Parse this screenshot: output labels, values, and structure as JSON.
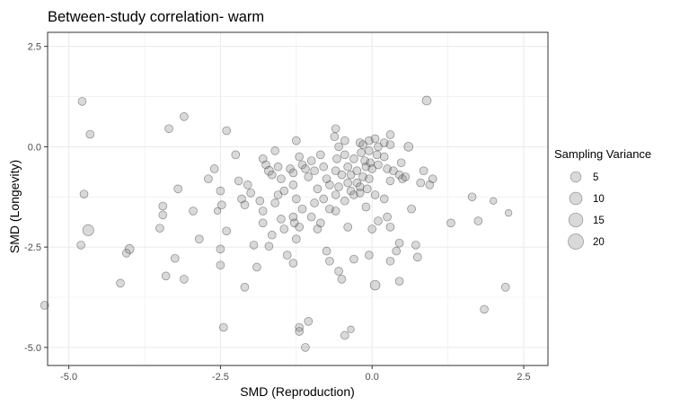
{
  "chart_data": {
    "type": "scatter",
    "title": "Between-study correlation- warm",
    "xlabel": "SMD (Reproduction)",
    "ylabel": "SMD (Longevity)",
    "xlim": [
      -5.35,
      2.9
    ],
    "ylim": [
      -5.45,
      2.85
    ],
    "x_ticks": [
      -5.0,
      -2.5,
      0.0,
      2.5
    ],
    "x_tick_labels": [
      "-5.0",
      "-2.5",
      "0.0",
      "2.5"
    ],
    "y_ticks": [
      -5.0,
      -2.5,
      0.0,
      2.5
    ],
    "y_tick_labels": [
      "-5.0",
      "-2.5",
      "0.0",
      "2.5"
    ],
    "grid": true,
    "legend": {
      "title": "Sampling Variance",
      "position": "right",
      "entries": [
        {
          "label": "5",
          "value": 5
        },
        {
          "label": "10",
          "value": 10
        },
        {
          "label": "15",
          "value": 15
        },
        {
          "label": "20",
          "value": 20
        }
      ]
    },
    "colors": {
      "point_fill": "#808080",
      "point_stroke": "#3a3a3a",
      "grid": "#ebebeb",
      "panel_border": "#333333"
    },
    "points": [
      {
        "x": -4.78,
        "y": 1.13,
        "v": 2
      },
      {
        "x": -4.65,
        "y": 0.31,
        "v": 2
      },
      {
        "x": -4.75,
        "y": -1.18,
        "v": 2
      },
      {
        "x": -4.68,
        "y": -2.08,
        "v": 6
      },
      {
        "x": -4.8,
        "y": -2.45,
        "v": 2
      },
      {
        "x": -4.0,
        "y": -2.55,
        "v": 3
      },
      {
        "x": -4.05,
        "y": -2.65,
        "v": 2
      },
      {
        "x": -4.15,
        "y": -3.4,
        "v": 2
      },
      {
        "x": -5.4,
        "y": -3.95,
        "v": 2
      },
      {
        "x": -3.45,
        "y": -1.48,
        "v": 2
      },
      {
        "x": -3.45,
        "y": -1.7,
        "v": 2
      },
      {
        "x": -3.5,
        "y": -2.03,
        "v": 2
      },
      {
        "x": -3.4,
        "y": -3.22,
        "v": 2
      },
      {
        "x": -3.1,
        "y": 0.75,
        "v": 2
      },
      {
        "x": -3.35,
        "y": 0.45,
        "v": 2
      },
      {
        "x": -3.2,
        "y": -1.05,
        "v": 2
      },
      {
        "x": -2.95,
        "y": -1.6,
        "v": 2
      },
      {
        "x": -3.25,
        "y": -2.78,
        "v": 2
      },
      {
        "x": -3.1,
        "y": -3.3,
        "v": 2
      },
      {
        "x": -2.85,
        "y": -2.3,
        "v": 2
      },
      {
        "x": -2.6,
        "y": -0.55,
        "v": 2
      },
      {
        "x": -2.7,
        "y": -0.8,
        "v": 2
      },
      {
        "x": -2.5,
        "y": -1.1,
        "v": 2
      },
      {
        "x": -2.55,
        "y": -1.6,
        "v": 1
      },
      {
        "x": -2.48,
        "y": -1.45,
        "v": 2
      },
      {
        "x": -2.4,
        "y": -2.1,
        "v": 2
      },
      {
        "x": -2.5,
        "y": -2.55,
        "v": 2
      },
      {
        "x": -2.5,
        "y": -2.95,
        "v": 2
      },
      {
        "x": -2.45,
        "y": -4.5,
        "v": 2
      },
      {
        "x": -2.4,
        "y": 0.4,
        "v": 2
      },
      {
        "x": -2.25,
        "y": -0.2,
        "v": 2
      },
      {
        "x": -2.2,
        "y": -0.85,
        "v": 2
      },
      {
        "x": -2.15,
        "y": -1.3,
        "v": 2
      },
      {
        "x": -2.1,
        "y": -1.45,
        "v": 2
      },
      {
        "x": -2.05,
        "y": -0.95,
        "v": 2
      },
      {
        "x": -2.0,
        "y": -1.15,
        "v": 2
      },
      {
        "x": -1.95,
        "y": -2.45,
        "v": 2
      },
      {
        "x": -2.1,
        "y": -3.5,
        "v": 2
      },
      {
        "x": -1.9,
        "y": -3.0,
        "v": 2
      },
      {
        "x": -1.8,
        "y": -0.3,
        "v": 2
      },
      {
        "x": -1.75,
        "y": -0.45,
        "v": 2
      },
      {
        "x": -1.7,
        "y": -0.6,
        "v": 3
      },
      {
        "x": -1.65,
        "y": -0.7,
        "v": 2
      },
      {
        "x": -1.85,
        "y": -1.35,
        "v": 2
      },
      {
        "x": -1.8,
        "y": -1.6,
        "v": 2
      },
      {
        "x": -1.8,
        "y": -1.9,
        "v": 2
      },
      {
        "x": -1.65,
        "y": -2.2,
        "v": 2
      },
      {
        "x": -1.7,
        "y": -2.48,
        "v": 2
      },
      {
        "x": -1.6,
        "y": -0.1,
        "v": 2
      },
      {
        "x": -1.55,
        "y": -0.5,
        "v": 2
      },
      {
        "x": -1.5,
        "y": -0.8,
        "v": 2
      },
      {
        "x": -1.55,
        "y": -1.2,
        "v": 2
      },
      {
        "x": -1.45,
        "y": -1.1,
        "v": 2
      },
      {
        "x": -1.6,
        "y": -1.4,
        "v": 2
      },
      {
        "x": -1.5,
        "y": -1.8,
        "v": 2
      },
      {
        "x": -1.45,
        "y": -2.05,
        "v": 2
      },
      {
        "x": -1.4,
        "y": -2.7,
        "v": 2
      },
      {
        "x": -1.35,
        "y": -0.55,
        "v": 2
      },
      {
        "x": -1.3,
        "y": -0.65,
        "v": 2
      },
      {
        "x": -1.3,
        "y": -0.95,
        "v": 2
      },
      {
        "x": -1.25,
        "y": -1.3,
        "v": 2
      },
      {
        "x": -1.3,
        "y": -1.75,
        "v": 2
      },
      {
        "x": -1.28,
        "y": -1.9,
        "v": 2
      },
      {
        "x": -1.2,
        "y": -2.0,
        "v": 2
      },
      {
        "x": -1.25,
        "y": -2.3,
        "v": 2
      },
      {
        "x": -1.3,
        "y": -2.9,
        "v": 2
      },
      {
        "x": -1.25,
        "y": 0.15,
        "v": 2
      },
      {
        "x": -1.2,
        "y": -0.25,
        "v": 2
      },
      {
        "x": -1.15,
        "y": -0.45,
        "v": 2
      },
      {
        "x": -1.1,
        "y": -0.55,
        "v": 2
      },
      {
        "x": -1.05,
        "y": -0.75,
        "v": 2
      },
      {
        "x": -1.15,
        "y": -1.55,
        "v": 2
      },
      {
        "x": -1.2,
        "y": -4.5,
        "v": 2
      },
      {
        "x": -1.2,
        "y": -4.6,
        "v": 2
      },
      {
        "x": -1.05,
        "y": -4.35,
        "v": 2
      },
      {
        "x": -1.1,
        "y": -5.0,
        "v": 2
      },
      {
        "x": -1.0,
        "y": -0.35,
        "v": 2
      },
      {
        "x": -0.95,
        "y": -0.6,
        "v": 2
      },
      {
        "x": -0.9,
        "y": -1.05,
        "v": 2
      },
      {
        "x": -0.95,
        "y": -1.4,
        "v": 2
      },
      {
        "x": -1.0,
        "y": -1.75,
        "v": 2
      },
      {
        "x": -0.85,
        "y": -1.9,
        "v": 2
      },
      {
        "x": -0.9,
        "y": -2.05,
        "v": 2
      },
      {
        "x": -0.85,
        "y": -0.2,
        "v": 2
      },
      {
        "x": -0.8,
        "y": -0.5,
        "v": 2
      },
      {
        "x": -0.75,
        "y": -0.8,
        "v": 2
      },
      {
        "x": -0.7,
        "y": -0.95,
        "v": 2
      },
      {
        "x": -0.8,
        "y": -1.3,
        "v": 2
      },
      {
        "x": -0.7,
        "y": -1.55,
        "v": 2
      },
      {
        "x": -0.75,
        "y": -2.6,
        "v": 2
      },
      {
        "x": -0.7,
        "y": -2.85,
        "v": 2
      },
      {
        "x": -0.6,
        "y": 0.45,
        "v": 2
      },
      {
        "x": -0.62,
        "y": 0.25,
        "v": 2
      },
      {
        "x": -0.55,
        "y": 0.0,
        "v": 2
      },
      {
        "x": -0.58,
        "y": -0.3,
        "v": 2
      },
      {
        "x": -0.6,
        "y": -0.6,
        "v": 2
      },
      {
        "x": -0.5,
        "y": -0.7,
        "v": 2
      },
      {
        "x": -0.55,
        "y": -1.0,
        "v": 2
      },
      {
        "x": -0.6,
        "y": -1.2,
        "v": 2
      },
      {
        "x": -0.6,
        "y": -1.6,
        "v": 2
      },
      {
        "x": -0.55,
        "y": -3.1,
        "v": 2
      },
      {
        "x": -0.5,
        "y": -3.3,
        "v": 2
      },
      {
        "x": -0.45,
        "y": 0.15,
        "v": 2
      },
      {
        "x": -0.45,
        "y": -0.2,
        "v": 2
      },
      {
        "x": -0.4,
        "y": -0.5,
        "v": 2
      },
      {
        "x": -0.35,
        "y": -0.7,
        "v": 2
      },
      {
        "x": -0.4,
        "y": -0.9,
        "v": 2
      },
      {
        "x": -0.35,
        "y": -1.1,
        "v": 2
      },
      {
        "x": -0.45,
        "y": -1.35,
        "v": 2
      },
      {
        "x": -0.4,
        "y": -2.0,
        "v": 2
      },
      {
        "x": -0.45,
        "y": -4.7,
        "v": 2
      },
      {
        "x": -0.35,
        "y": -4.55,
        "v": 1
      },
      {
        "x": -0.3,
        "y": -0.3,
        "v": 2
      },
      {
        "x": -0.25,
        "y": -0.6,
        "v": 2
      },
      {
        "x": -0.25,
        "y": -0.9,
        "v": 2
      },
      {
        "x": -0.3,
        "y": -1.2,
        "v": 2
      },
      {
        "x": -0.2,
        "y": -1.0,
        "v": 2
      },
      {
        "x": -0.3,
        "y": -2.8,
        "v": 2
      },
      {
        "x": -0.2,
        "y": 0.1,
        "v": 2
      },
      {
        "x": -0.15,
        "y": 0.05,
        "v": 2
      },
      {
        "x": -0.18,
        "y": -0.15,
        "v": 2
      },
      {
        "x": -0.12,
        "y": -0.35,
        "v": 2
      },
      {
        "x": -0.1,
        "y": -0.5,
        "v": 2
      },
      {
        "x": -0.15,
        "y": -0.75,
        "v": 2
      },
      {
        "x": -0.2,
        "y": -1.15,
        "v": 2
      },
      {
        "x": -0.1,
        "y": -1.5,
        "v": 2
      },
      {
        "x": -0.05,
        "y": 0.15,
        "v": 2
      },
      {
        "x": -0.05,
        "y": -0.1,
        "v": 2
      },
      {
        "x": -0.03,
        "y": -0.4,
        "v": 2
      },
      {
        "x": 0.0,
        "y": -0.55,
        "v": 2
      },
      {
        "x": -0.05,
        "y": -0.8,
        "v": 2
      },
      {
        "x": -0.08,
        "y": -1.05,
        "v": 2
      },
      {
        "x": 0.0,
        "y": -2.05,
        "v": 2
      },
      {
        "x": -0.05,
        "y": -2.7,
        "v": 2
      },
      {
        "x": 0.05,
        "y": -3.45,
        "v": 4
      },
      {
        "x": 0.05,
        "y": 0.2,
        "v": 2
      },
      {
        "x": 0.1,
        "y": 0.0,
        "v": 2
      },
      {
        "x": 0.08,
        "y": -0.2,
        "v": 2
      },
      {
        "x": 0.1,
        "y": -0.45,
        "v": 2
      },
      {
        "x": 0.05,
        "y": -1.2,
        "v": 2
      },
      {
        "x": 0.1,
        "y": -1.85,
        "v": 2
      },
      {
        "x": 0.2,
        "y": 0.1,
        "v": 2
      },
      {
        "x": 0.2,
        "y": -0.25,
        "v": 2
      },
      {
        "x": 0.25,
        "y": -0.55,
        "v": 2
      },
      {
        "x": 0.2,
        "y": -1.3,
        "v": 2
      },
      {
        "x": 0.3,
        "y": 0.3,
        "v": 2
      },
      {
        "x": 0.3,
        "y": 0.05,
        "v": 2
      },
      {
        "x": 0.35,
        "y": -0.6,
        "v": 2
      },
      {
        "x": 0.3,
        "y": -0.85,
        "v": 2
      },
      {
        "x": 0.25,
        "y": -1.75,
        "v": 2
      },
      {
        "x": 0.3,
        "y": -2.0,
        "v": 2
      },
      {
        "x": 0.45,
        "y": -0.7,
        "v": 2
      },
      {
        "x": 0.5,
        "y": -0.8,
        "v": 2
      },
      {
        "x": 0.48,
        "y": -0.4,
        "v": 2
      },
      {
        "x": 0.55,
        "y": -0.75,
        "v": 2
      },
      {
        "x": 0.6,
        "y": 0.0,
        "v": 3
      },
      {
        "x": 0.45,
        "y": -2.4,
        "v": 2
      },
      {
        "x": 0.4,
        "y": -2.6,
        "v": 2
      },
      {
        "x": 0.3,
        "y": -2.85,
        "v": 2
      },
      {
        "x": 0.45,
        "y": -3.35,
        "v": 2
      },
      {
        "x": 0.65,
        "y": -1.55,
        "v": 2
      },
      {
        "x": 0.72,
        "y": -2.45,
        "v": 2
      },
      {
        "x": 0.75,
        "y": -2.75,
        "v": 2
      },
      {
        "x": 0.8,
        "y": -0.9,
        "v": 2
      },
      {
        "x": 0.85,
        "y": -0.6,
        "v": 2
      },
      {
        "x": 0.9,
        "y": 1.15,
        "v": 3
      },
      {
        "x": 0.95,
        "y": -0.95,
        "v": 2
      },
      {
        "x": 1.0,
        "y": -0.8,
        "v": 2
      },
      {
        "x": 1.3,
        "y": -1.9,
        "v": 2
      },
      {
        "x": 1.65,
        "y": -1.25,
        "v": 2
      },
      {
        "x": 1.75,
        "y": -1.85,
        "v": 2
      },
      {
        "x": 1.85,
        "y": -4.05,
        "v": 2
      },
      {
        "x": 2.0,
        "y": -1.35,
        "v": 1
      },
      {
        "x": 2.2,
        "y": -3.5,
        "v": 2
      },
      {
        "x": 2.25,
        "y": -1.65,
        "v": 1
      }
    ]
  }
}
